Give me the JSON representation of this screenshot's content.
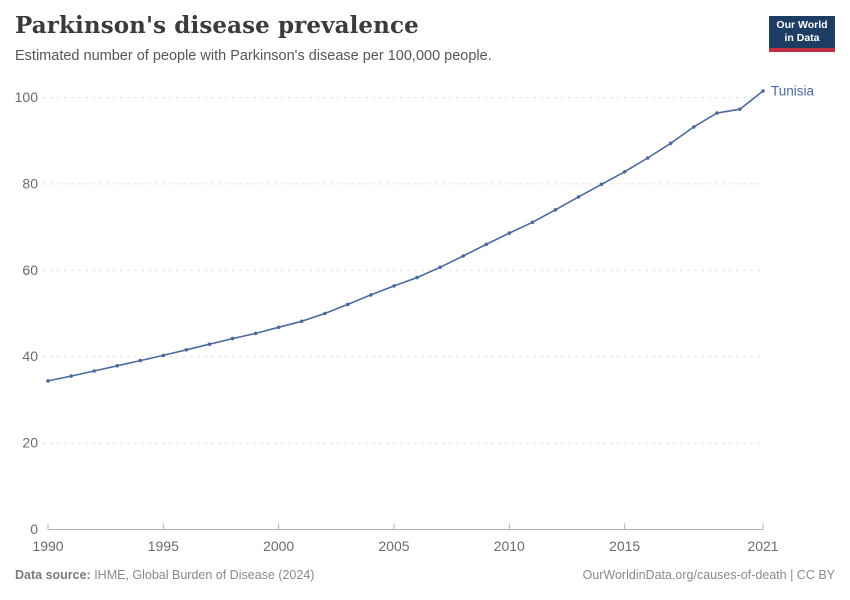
{
  "header": {
    "title": "Parkinson's disease prevalence",
    "subtitle": "Estimated number of people with Parkinson's disease per 100,000 people.",
    "logo": {
      "line1": "Our World",
      "line2": "in Data"
    }
  },
  "chart_data": {
    "type": "line",
    "title": "Parkinson's disease prevalence",
    "subtitle": "Estimated number of people with Parkinson's disease per 100,000 people.",
    "xlabel": "",
    "ylabel": "",
    "xlim": [
      1990,
      2021
    ],
    "ylim": [
      0,
      100
    ],
    "x_ticks": [
      1990,
      1995,
      2000,
      2005,
      2010,
      2015,
      2021
    ],
    "y_ticks": [
      0,
      20,
      40,
      60,
      80,
      100
    ],
    "grid": "horizontal dashed",
    "legend_position": "end-of-line label",
    "series": [
      {
        "name": "Tunisia",
        "color": "#4C6A9C",
        "x": [
          1990,
          1991,
          1992,
          1993,
          1994,
          1995,
          1996,
          1997,
          1998,
          1999,
          2000,
          2001,
          2002,
          2003,
          2004,
          2005,
          2006,
          2007,
          2008,
          2009,
          2010,
          2011,
          2012,
          2013,
          2014,
          2015,
          2016,
          2017,
          2018,
          2019,
          2020,
          2021
        ],
        "values": [
          34.4,
          35.5,
          36.7,
          37.9,
          39.1,
          40.3,
          41.6,
          42.9,
          44.2,
          45.4,
          46.8,
          48.2,
          50.0,
          52.1,
          54.3,
          56.4,
          58.3,
          60.7,
          63.3,
          66.0,
          68.6,
          71.1,
          74.0,
          77.0,
          79.9,
          82.8,
          86.0,
          89.4,
          93.2,
          96.4,
          97.3,
          101.5
        ]
      }
    ]
  },
  "colors": {
    "line": "#4C6A9C",
    "grid": "#e0e0e0",
    "axis": "#b3b3b3",
    "tick_text": "#6b6b6b",
    "logo_bg": "#1d3d63",
    "logo_stripe": "#bf2e40"
  },
  "footer": {
    "datasource_label": "Data source:",
    "datasource_value": " IHME, Global Burden of Disease (2024)",
    "credit": "OurWorldinData.org/causes-of-death | CC BY"
  }
}
